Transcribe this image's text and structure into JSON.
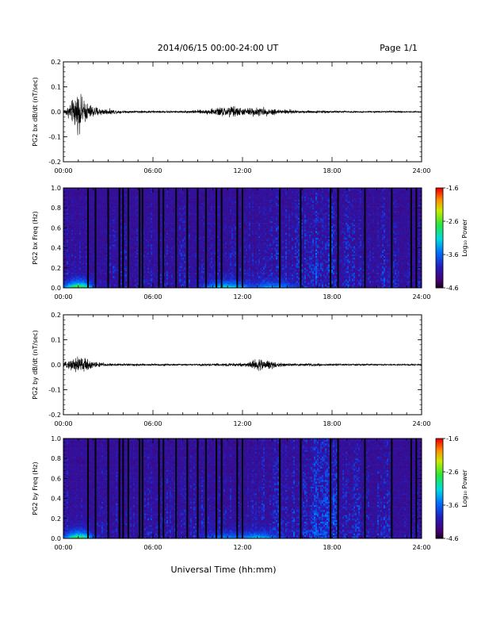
{
  "header": {
    "title": "2014/06/15  00:00-24:00 UT",
    "page": "Page 1/1"
  },
  "xlabel": "Universal Time (hh:mm)",
  "colorbar": {
    "label": "Log₁₀ Power",
    "ticks": [
      "-1.6",
      "-2.6",
      "-3.6",
      "-4.6"
    ],
    "range": [
      -4.6,
      -1.6
    ]
  },
  "chart_data": [
    {
      "type": "line",
      "ylabel": "PG2 bx dB/dt (nT/sec)",
      "xlim_hours": [
        0,
        24
      ],
      "x_ticks": [
        "00:00",
        "06:00",
        "12:00",
        "18:00",
        "24:00"
      ],
      "ylim": [
        -0.2,
        0.2
      ],
      "y_ticks": [
        "0.2",
        "0.1",
        "0.0",
        "-0.1",
        "-0.2"
      ],
      "series": [
        {
          "envelope": [
            {
              "hours": 0.0,
              "amp": 0.01
            },
            {
              "hours": 0.4,
              "amp": 0.04
            },
            {
              "hours": 0.8,
              "amp": 0.09
            },
            {
              "hours": 1.0,
              "amp": 0.11
            },
            {
              "hours": 1.3,
              "amp": 0.07
            },
            {
              "hours": 1.8,
              "amp": 0.04
            },
            {
              "hours": 2.5,
              "amp": 0.02
            },
            {
              "hours": 4.0,
              "amp": 0.007
            },
            {
              "hours": 8.0,
              "amp": 0.006
            },
            {
              "hours": 9.5,
              "amp": 0.012
            },
            {
              "hours": 10.5,
              "amp": 0.025
            },
            {
              "hours": 11.3,
              "amp": 0.035
            },
            {
              "hours": 12.0,
              "amp": 0.02
            },
            {
              "hours": 13.0,
              "amp": 0.025
            },
            {
              "hours": 14.5,
              "amp": 0.015
            },
            {
              "hours": 16.0,
              "amp": 0.008
            },
            {
              "hours": 20.0,
              "amp": 0.005
            },
            {
              "hours": 24.0,
              "amp": 0.004
            }
          ]
        }
      ]
    },
    {
      "type": "heatmap",
      "ylabel": "PG2 bx Freq (Hz)",
      "xlim_hours": [
        0,
        24
      ],
      "x_ticks": [
        "00:00",
        "06:00",
        "12:00",
        "18:00",
        "24:00"
      ],
      "ylim": [
        0.0,
        1.0
      ],
      "y_ticks": [
        "1.0",
        "0.8",
        "0.6",
        "0.4",
        "0.2",
        "0.0"
      ],
      "color_scale": "Log₁₀ Power, -4.6 to -1.6",
      "data_gaps_hours": [
        1.65,
        2.15,
        3.0,
        3.75,
        4.0,
        4.35,
        5.1,
        5.3,
        6.4,
        6.7,
        7.55,
        8.3,
        9.0,
        9.55,
        10.25,
        10.6,
        11.65,
        12.0,
        14.5,
        15.9,
        17.9,
        18.4,
        20.2,
        22.0,
        23.3,
        23.65
      ],
      "low_freq_enhancements": [
        {
          "hours": 1.0,
          "max_log_power": -2.3
        },
        {
          "hours": 11.0,
          "max_log_power": -2.9
        },
        {
          "hours": 14.0,
          "max_log_power": -3.2
        }
      ]
    },
    {
      "type": "line",
      "ylabel": "PG2 by dB/dt (nT/sec)",
      "xlim_hours": [
        0,
        24
      ],
      "x_ticks": [
        "00:00",
        "06:00",
        "12:00",
        "18:00",
        "24:00"
      ],
      "ylim": [
        -0.2,
        0.2
      ],
      "y_ticks": [
        "0.2",
        "0.1",
        "0.0",
        "-0.1",
        "-0.2"
      ],
      "series": [
        {
          "envelope": [
            {
              "hours": 0.0,
              "amp": 0.008
            },
            {
              "hours": 0.5,
              "amp": 0.03
            },
            {
              "hours": 1.0,
              "amp": 0.06
            },
            {
              "hours": 1.3,
              "amp": 0.04
            },
            {
              "hours": 2.0,
              "amp": 0.02
            },
            {
              "hours": 3.0,
              "amp": 0.008
            },
            {
              "hours": 8.0,
              "amp": 0.005
            },
            {
              "hours": 10.5,
              "amp": 0.007
            },
            {
              "hours": 12.3,
              "amp": 0.012
            },
            {
              "hours": 13.0,
              "amp": 0.035
            },
            {
              "hours": 13.5,
              "amp": 0.025
            },
            {
              "hours": 14.0,
              "amp": 0.02
            },
            {
              "hours": 15.0,
              "amp": 0.008
            },
            {
              "hours": 20.0,
              "amp": 0.005
            },
            {
              "hours": 24.0,
              "amp": 0.004
            }
          ]
        }
      ]
    },
    {
      "type": "heatmap",
      "ylabel": "PG2 by Freq (Hz)",
      "xlim_hours": [
        0,
        24
      ],
      "x_ticks": [
        "00:00",
        "06:00",
        "12:00",
        "18:00",
        "24:00"
      ],
      "ylim": [
        0.0,
        1.0
      ],
      "y_ticks": [
        "1.0",
        "0.8",
        "0.6",
        "0.4",
        "0.2",
        "0.0"
      ],
      "color_scale": "Log₁₀ Power, -4.6 to -1.6",
      "data_gaps_hours": [
        1.65,
        2.15,
        3.0,
        3.75,
        4.0,
        4.35,
        5.1,
        5.3,
        6.4,
        6.7,
        7.55,
        8.3,
        9.0,
        9.55,
        10.25,
        10.6,
        11.65,
        12.0,
        14.5,
        15.9,
        17.9,
        18.4,
        20.2,
        22.0,
        23.3,
        23.65
      ],
      "low_freq_enhancements": [
        {
          "hours": 1.0,
          "max_log_power": -2.4
        },
        {
          "hours": 11.0,
          "max_log_power": -3.3
        },
        {
          "hours": 13.0,
          "max_log_power": -3.1
        }
      ]
    }
  ]
}
